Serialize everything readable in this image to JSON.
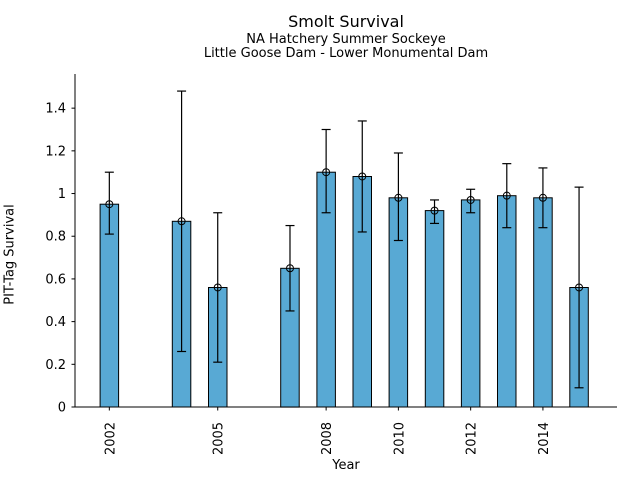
{
  "chart_data": {
    "type": "bar",
    "title": "Smolt Survival",
    "subtitle_line1": "NA Hatchery Summer Sockeye",
    "subtitle_line2": "Little Goose Dam - Lower Monumental Dam",
    "xlabel": "Year",
    "ylabel": "PIT-Tag Survival",
    "years": [
      2002,
      2004,
      2005,
      2007,
      2008,
      2009,
      2010,
      2011,
      2012,
      2013,
      2014,
      2015
    ],
    "values": [
      0.95,
      0.87,
      0.56,
      0.65,
      1.1,
      1.08,
      0.98,
      0.92,
      0.97,
      0.99,
      0.98,
      0.56
    ],
    "err_low": [
      0.81,
      0.26,
      0.21,
      0.45,
      0.91,
      0.82,
      0.78,
      0.86,
      0.91,
      0.84,
      0.84,
      0.09
    ],
    "err_high": [
      1.1,
      1.48,
      0.91,
      0.85,
      1.3,
      1.34,
      1.19,
      0.97,
      1.02,
      1.14,
      1.12,
      1.03
    ],
    "xtick_years": [
      2002,
      2005,
      2008,
      2010,
      2012,
      2014
    ],
    "xtick_labels": [
      "2002",
      "2005",
      "2008",
      "2010",
      "2012",
      "2014"
    ],
    "ytick_values": [
      0,
      0.2,
      0.4,
      0.6,
      0.8,
      1,
      1.2,
      1.4
    ],
    "ytick_labels": [
      "0",
      "0.2",
      "0.4",
      "0.6",
      "0.8",
      "1",
      "1.2",
      "1.4"
    ],
    "ylim": [
      0,
      1.56
    ],
    "xlim": [
      2001.05,
      2016.05
    ],
    "grid": false,
    "legend_position": "none",
    "bar_color": "#58a9d4",
    "edge_color": "#000000",
    "axis_color": "#000000",
    "marker_shape": "open-circle"
  }
}
